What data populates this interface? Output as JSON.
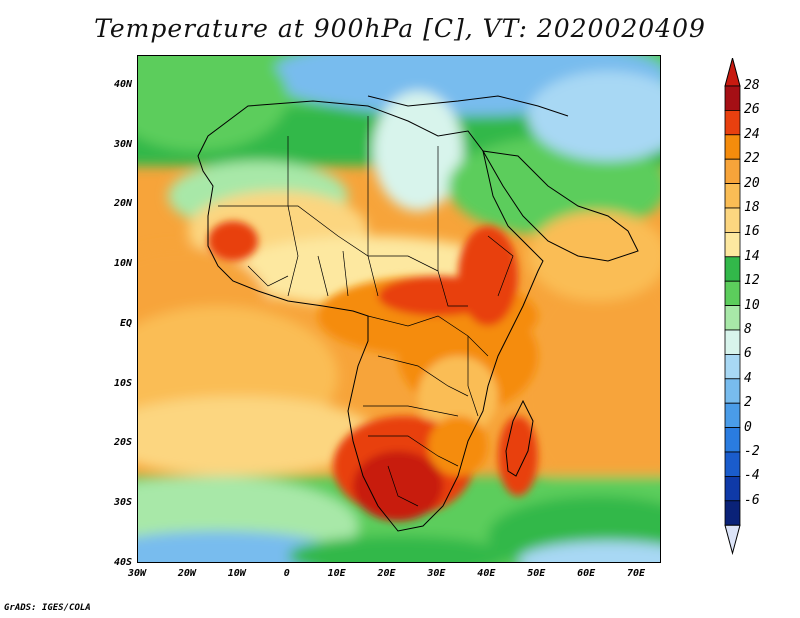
{
  "title": "Temperature at 900hPa [C], VT: 2020020409",
  "credit": "GrADS: IGES/COLA",
  "map": {
    "lon_range": [
      -30,
      75
    ],
    "lat_range": [
      -40,
      45
    ],
    "lat_ticks": [
      {
        "value": 40,
        "label": "40N"
      },
      {
        "value": 30,
        "label": "30N"
      },
      {
        "value": 20,
        "label": "20N"
      },
      {
        "value": 10,
        "label": "10N"
      },
      {
        "value": 0,
        "label": "EQ"
      },
      {
        "value": -10,
        "label": "10S"
      },
      {
        "value": -20,
        "label": "20S"
      },
      {
        "value": -30,
        "label": "30S"
      },
      {
        "value": -40,
        "label": "40S"
      }
    ],
    "lon_ticks": [
      {
        "value": -30,
        "label": "30W"
      },
      {
        "value": -20,
        "label": "20W"
      },
      {
        "value": -10,
        "label": "10W"
      },
      {
        "value": 0,
        "label": "0"
      },
      {
        "value": 10,
        "label": "10E"
      },
      {
        "value": 20,
        "label": "20E"
      },
      {
        "value": 30,
        "label": "30E"
      },
      {
        "value": 40,
        "label": "40E"
      },
      {
        "value": 50,
        "label": "50E"
      },
      {
        "value": 60,
        "label": "60E"
      },
      {
        "value": 70,
        "label": "70E"
      }
    ]
  },
  "colorbar": {
    "levels": [
      {
        "value": 28,
        "label": "28",
        "color": "#a50f15"
      },
      {
        "value": 26,
        "label": "26",
        "color": "#e8400f"
      },
      {
        "value": 24,
        "label": "24",
        "color": "#f58c0c"
      },
      {
        "value": 22,
        "label": "22",
        "color": "#f7a43a"
      },
      {
        "value": 20,
        "label": "20",
        "color": "#fabd55"
      },
      {
        "value": 18,
        "label": "18",
        "color": "#fcd680"
      },
      {
        "value": 16,
        "label": "16",
        "color": "#fde8a0"
      },
      {
        "value": 14,
        "label": "14",
        "color": "#32b84a"
      },
      {
        "value": 12,
        "label": "12",
        "color": "#5ccd5c"
      },
      {
        "value": 10,
        "label": "10",
        "color": "#a8e8a8"
      },
      {
        "value": 8,
        "label": "8",
        "color": "#d8f4ec"
      },
      {
        "value": 6,
        "label": "6",
        "color": "#a8d8f4"
      },
      {
        "value": 4,
        "label": "4",
        "color": "#78bcee"
      },
      {
        "value": 2,
        "label": "2",
        "color": "#4a9ce8"
      },
      {
        "value": 0,
        "label": "0",
        "color": "#2a7ce0"
      },
      {
        "value": -2,
        "label": "-2",
        "color": "#1a5ccc"
      },
      {
        "value": -4,
        "label": "-4",
        "color": "#0f3aa8"
      },
      {
        "value": -6,
        "label": "-6",
        "color": "#0a2278"
      }
    ],
    "top_arrow_color": "#c81a10",
    "bottom_arrow_color": "#dce4f8"
  }
}
